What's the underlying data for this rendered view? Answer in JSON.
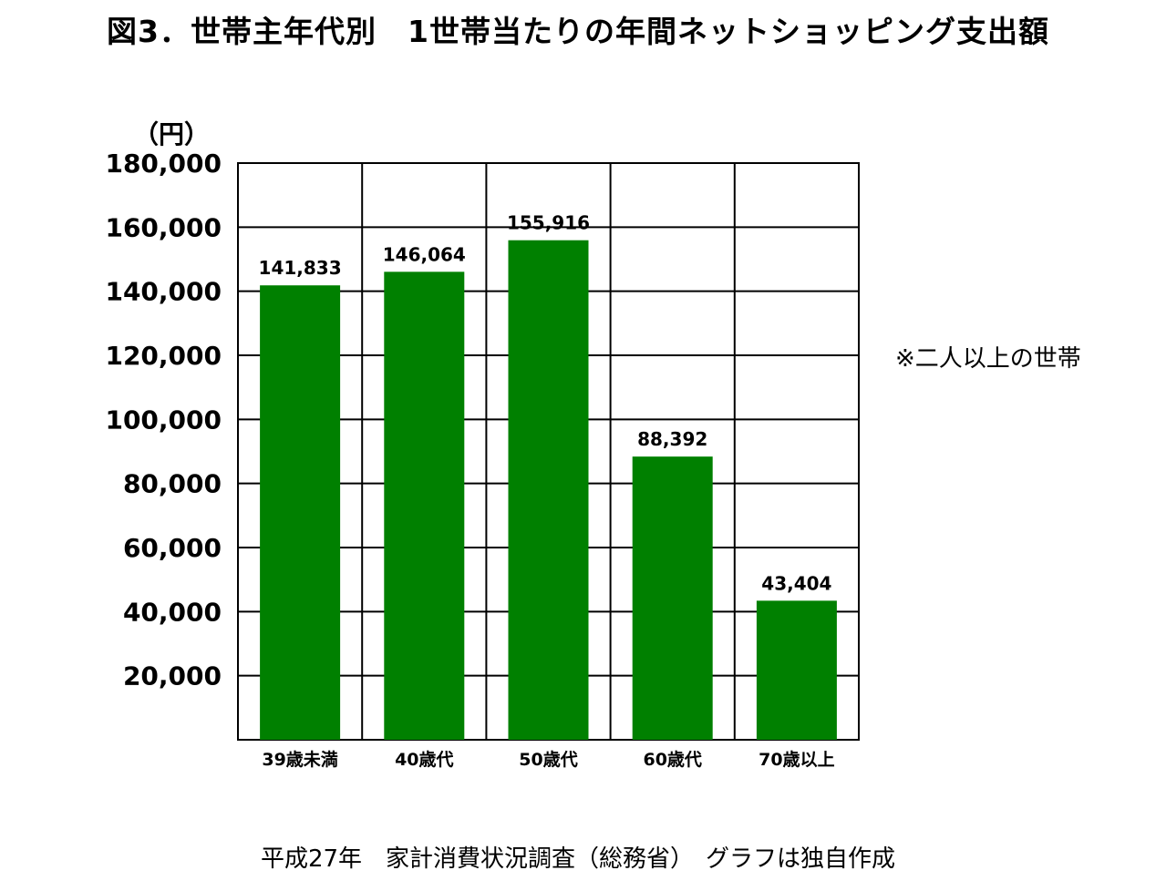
{
  "title": "図3．世帯主年代別　1世帯当たりの年間ネットショッピング支出額",
  "unit_label": "（円）",
  "note": "※二人以上の世帯",
  "source": "平成27年　家計消費状況調査（総務省）　グラフは独自作成",
  "colors": {
    "bar": "#008000",
    "grid": "#000000"
  },
  "chart_data": {
    "type": "bar",
    "categories": [
      "39歳未満",
      "40歳代",
      "50歳代",
      "60歳代",
      "70歳以上"
    ],
    "values": [
      141833,
      146064,
      155916,
      88392,
      43404
    ],
    "value_labels": [
      "141,833",
      "146,064",
      "155,916",
      "88,392",
      "43,404"
    ],
    "ylim": [
      0,
      180000
    ],
    "yticks": [
      20000,
      40000,
      60000,
      80000,
      100000,
      120000,
      140000,
      160000,
      180000
    ],
    "ytick_labels": [
      "20,000",
      "40,000",
      "60,000",
      "80,000",
      "100,000",
      "120,000",
      "140,000",
      "160,000",
      "180,000"
    ],
    "grid": true,
    "vertical_dividers": true,
    "title": "図3．世帯主年代別　1世帯当たりの年間ネットショッピング支出額",
    "ylabel": "（円）",
    "xlabel": ""
  }
}
